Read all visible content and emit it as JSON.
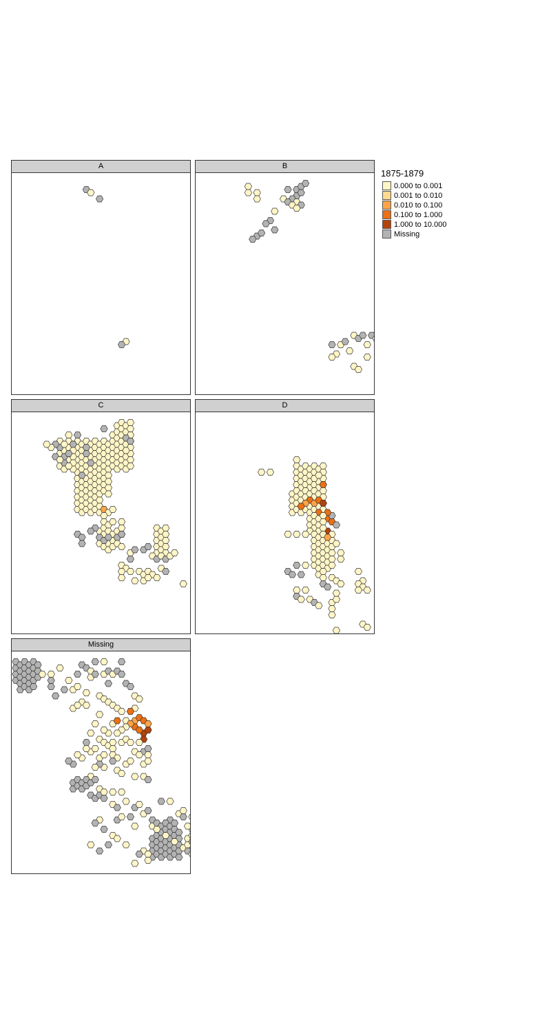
{
  "legend": {
    "title": "1875-1879",
    "classes": [
      {
        "label": "0.000 to 0.001",
        "color": "#fff5c6"
      },
      {
        "label": "0.001 to 0.010",
        "color": "#fed98e"
      },
      {
        "label": "0.010 to 0.100",
        "color": "#fea448"
      },
      {
        "label": "0.100 to 1.000",
        "color": "#ec7014"
      },
      {
        "label": "1.000 to 10.000",
        "color": "#b4430b"
      },
      {
        "label": "Missing",
        "color": "#b3b3b3"
      }
    ]
  },
  "panels": {
    "a": {
      "label": "A"
    },
    "b": {
      "label": "B"
    },
    "c": {
      "label": "C"
    },
    "d": {
      "label": "D"
    },
    "missing": {
      "label": "Missing"
    }
  }
}
